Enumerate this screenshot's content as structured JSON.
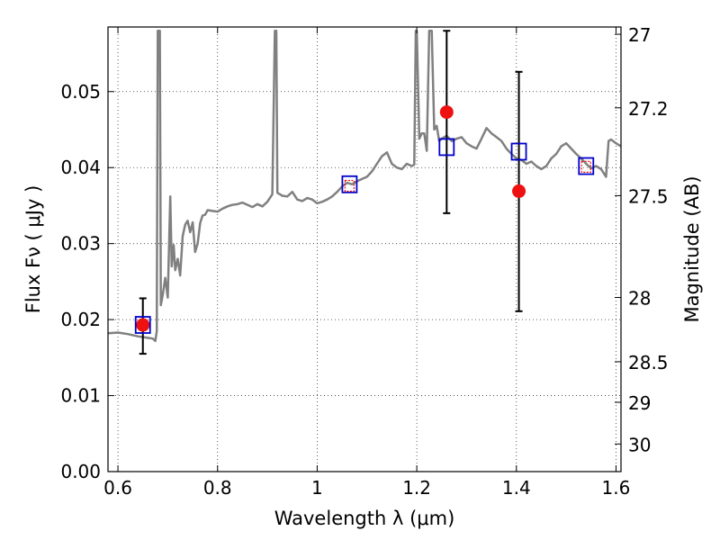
{
  "chart_data": {
    "type": "scatter",
    "xlabel": "Wavelength  λ (μm)",
    "ylabel": "Flux  Fν  ( μJy )",
    "y2label": "Magnitude (AB)",
    "xlim": [
      0.58,
      1.61
    ],
    "ylim": [
      0.0,
      0.0585
    ],
    "x_ticks": [
      0.6,
      0.8,
      1.0,
      1.2,
      1.4,
      1.6
    ],
    "x_tick_labels": [
      "0.6",
      "0.8",
      "1",
      "1.2",
      "1.4",
      "1.6"
    ],
    "y_ticks": [
      0.0,
      0.01,
      0.02,
      0.03,
      0.04,
      0.05
    ],
    "y_tick_labels": [
      "0.00",
      "0.01",
      "0.02",
      "0.03",
      "0.04",
      "0.05"
    ],
    "y2_ticks": [
      27,
      27.2,
      27.5,
      28,
      28.5,
      29,
      30
    ],
    "y2_tick_labels": [
      "27",
      "27.2",
      "27.5",
      "28",
      "28.5",
      "29",
      "30"
    ],
    "grid": true,
    "colors": {
      "spectrum": "#808080",
      "observed": "#ee1111",
      "model": "#0000cc",
      "errorbar": "#000000"
    },
    "spectrum": {
      "x": [
        0.58,
        0.6,
        0.62,
        0.64,
        0.66,
        0.67,
        0.675,
        0.678,
        0.68,
        0.682,
        0.684,
        0.686,
        0.69,
        0.695,
        0.7,
        0.705,
        0.708,
        0.71,
        0.712,
        0.715,
        0.72,
        0.725,
        0.73,
        0.735,
        0.74,
        0.745,
        0.75,
        0.755,
        0.76,
        0.765,
        0.77,
        0.775,
        0.78,
        0.79,
        0.8,
        0.81,
        0.82,
        0.83,
        0.84,
        0.85,
        0.86,
        0.87,
        0.88,
        0.89,
        0.9,
        0.91,
        0.915,
        0.918,
        0.92,
        0.922,
        0.925,
        0.93,
        0.94,
        0.95,
        0.96,
        0.97,
        0.98,
        0.99,
        1.0,
        1.01,
        1.02,
        1.03,
        1.04,
        1.05,
        1.06,
        1.07,
        1.08,
        1.09,
        1.1,
        1.11,
        1.12,
        1.13,
        1.14,
        1.15,
        1.16,
        1.17,
        1.18,
        1.19,
        1.195,
        1.198,
        1.2,
        1.205,
        1.21,
        1.215,
        1.22,
        1.225,
        1.23,
        1.235,
        1.24,
        1.245,
        1.25,
        1.26,
        1.27,
        1.28,
        1.29,
        1.3,
        1.31,
        1.32,
        1.33,
        1.34,
        1.35,
        1.36,
        1.37,
        1.38,
        1.39,
        1.4,
        1.41,
        1.42,
        1.43,
        1.44,
        1.45,
        1.46,
        1.47,
        1.48,
        1.49,
        1.5,
        1.51,
        1.52,
        1.53,
        1.54,
        1.55,
        1.56,
        1.57,
        1.58,
        1.585,
        1.59,
        1.6,
        1.61
      ],
      "y": [
        0.0182,
        0.0183,
        0.0181,
        0.0178,
        0.0176,
        0.0175,
        0.0172,
        0.0185,
        0.058,
        0.058,
        0.058,
        0.0219,
        0.0233,
        0.0255,
        0.0229,
        0.0362,
        0.027,
        0.0285,
        0.0298,
        0.0265,
        0.028,
        0.0258,
        0.031,
        0.0325,
        0.033,
        0.0315,
        0.0328,
        0.0289,
        0.03,
        0.0327,
        0.0337,
        0.0338,
        0.0344,
        0.0343,
        0.0342,
        0.0346,
        0.0349,
        0.0351,
        0.0352,
        0.0354,
        0.0351,
        0.0348,
        0.0352,
        0.0349,
        0.0355,
        0.0365,
        0.058,
        0.058,
        0.0367,
        0.0366,
        0.0365,
        0.0363,
        0.0362,
        0.0368,
        0.0358,
        0.0356,
        0.036,
        0.0358,
        0.0353,
        0.0355,
        0.0358,
        0.0362,
        0.0368,
        0.0375,
        0.038,
        0.0378,
        0.0382,
        0.0385,
        0.0388,
        0.0395,
        0.0405,
        0.0415,
        0.042,
        0.0405,
        0.04,
        0.0398,
        0.0405,
        0.0402,
        0.0404,
        0.058,
        0.058,
        0.0438,
        0.0445,
        0.0445,
        0.0422,
        0.058,
        0.058,
        0.045,
        0.0455,
        0.0435,
        0.0438,
        0.0442,
        0.0435,
        0.0438,
        0.044,
        0.0432,
        0.0428,
        0.0425,
        0.0438,
        0.0452,
        0.0445,
        0.044,
        0.0435,
        0.0425,
        0.0418,
        0.0412,
        0.041,
        0.0405,
        0.0408,
        0.0402,
        0.0398,
        0.0402,
        0.0412,
        0.0418,
        0.0428,
        0.0432,
        0.0425,
        0.0418,
        0.0412,
        0.0405,
        0.0399,
        0.0402,
        0.0398,
        0.0388,
        0.0435,
        0.0437,
        0.0432,
        0.0428
      ]
    },
    "observed": [
      {
        "x": 0.65,
        "y": 0.0193,
        "yerr_low": 0.0155,
        "yerr_high": 0.0228
      },
      {
        "x": 1.26,
        "y": 0.0473,
        "yerr_low": 0.034,
        "yerr_high": 0.058
      },
      {
        "x": 1.405,
        "y": 0.0369,
        "yerr_low": 0.0211,
        "yerr_high": 0.0526
      }
    ],
    "model": [
      {
        "x": 0.65,
        "y": 0.0193
      },
      {
        "x": 1.065,
        "y": 0.0378
      },
      {
        "x": 1.26,
        "y": 0.0427
      },
      {
        "x": 1.405,
        "y": 0.0421
      },
      {
        "x": 1.54,
        "y": 0.0402
      }
    ],
    "model_inner": [
      {
        "x": 1.065,
        "y": 0.0376
      },
      {
        "x": 1.54,
        "y": 0.0401
      }
    ]
  }
}
